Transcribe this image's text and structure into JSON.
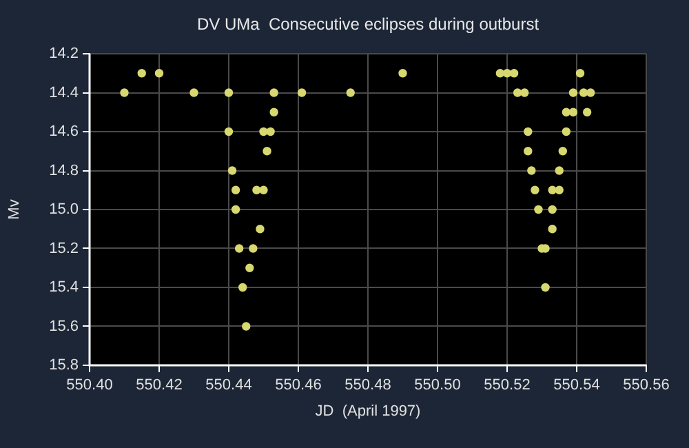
{
  "chart_data": {
    "type": "scatter",
    "title": "DV UMa  Consecutive eclipses during outburst",
    "xlabel": "JD  (April 1997)",
    "ylabel": "Mv",
    "series": [
      {
        "color": "#d8d870",
        "x": [
          550.415,
          550.42,
          550.41,
          550.43,
          550.44,
          550.453,
          550.461,
          550.475,
          550.49,
          550.453,
          550.44,
          550.45,
          550.452,
          550.451,
          550.441,
          550.442,
          550.448,
          550.45,
          550.442,
          550.449,
          550.443,
          550.447,
          550.446,
          550.444,
          550.445,
          550.518,
          550.52,
          550.522,
          550.541,
          550.523,
          550.525,
          550.539,
          550.542,
          550.544,
          550.537,
          550.539,
          550.543,
          550.526,
          550.537,
          550.526,
          550.536,
          550.527,
          550.535,
          550.528,
          550.533,
          550.535,
          550.529,
          550.533,
          550.533,
          550.53,
          550.531,
          550.531
        ],
        "values": [
          14.3,
          14.3,
          14.4,
          14.4,
          14.4,
          14.4,
          14.4,
          14.4,
          14.3,
          14.5,
          14.6,
          14.6,
          14.6,
          14.7,
          14.8,
          14.9,
          14.9,
          14.9,
          15.0,
          15.1,
          15.2,
          15.2,
          15.3,
          15.4,
          15.6,
          14.3,
          14.3,
          14.3,
          14.3,
          14.4,
          14.4,
          14.4,
          14.4,
          14.4,
          14.5,
          14.5,
          14.5,
          14.6,
          14.6,
          14.7,
          14.7,
          14.8,
          14.8,
          14.9,
          14.9,
          14.9,
          15.0,
          15.0,
          15.1,
          15.2,
          15.2,
          15.4
        ]
      }
    ],
    "xlim": [
      550.4,
      550.56
    ],
    "xticks": [
      {
        "value": 550.4,
        "label": "550.40"
      },
      {
        "value": 550.42,
        "label": "550.42"
      },
      {
        "value": 550.44,
        "label": "550.44"
      },
      {
        "value": 550.46,
        "label": "550.46"
      },
      {
        "value": 550.48,
        "label": "550.48"
      },
      {
        "value": 550.5,
        "label": "550.50"
      },
      {
        "value": 550.52,
        "label": "550.52"
      },
      {
        "value": 550.54,
        "label": "550.54"
      },
      {
        "value": 550.56,
        "label": "550.56"
      }
    ],
    "ylim": [
      15.8,
      14.2
    ],
    "yticks": [
      14.2,
      14.4,
      14.6,
      14.8,
      {
        "value": 15,
        "label": "15.0"
      },
      15.2,
      15.4,
      15.6,
      15.8
    ],
    "grid": true,
    "legend": false,
    "marker": "circle"
  }
}
